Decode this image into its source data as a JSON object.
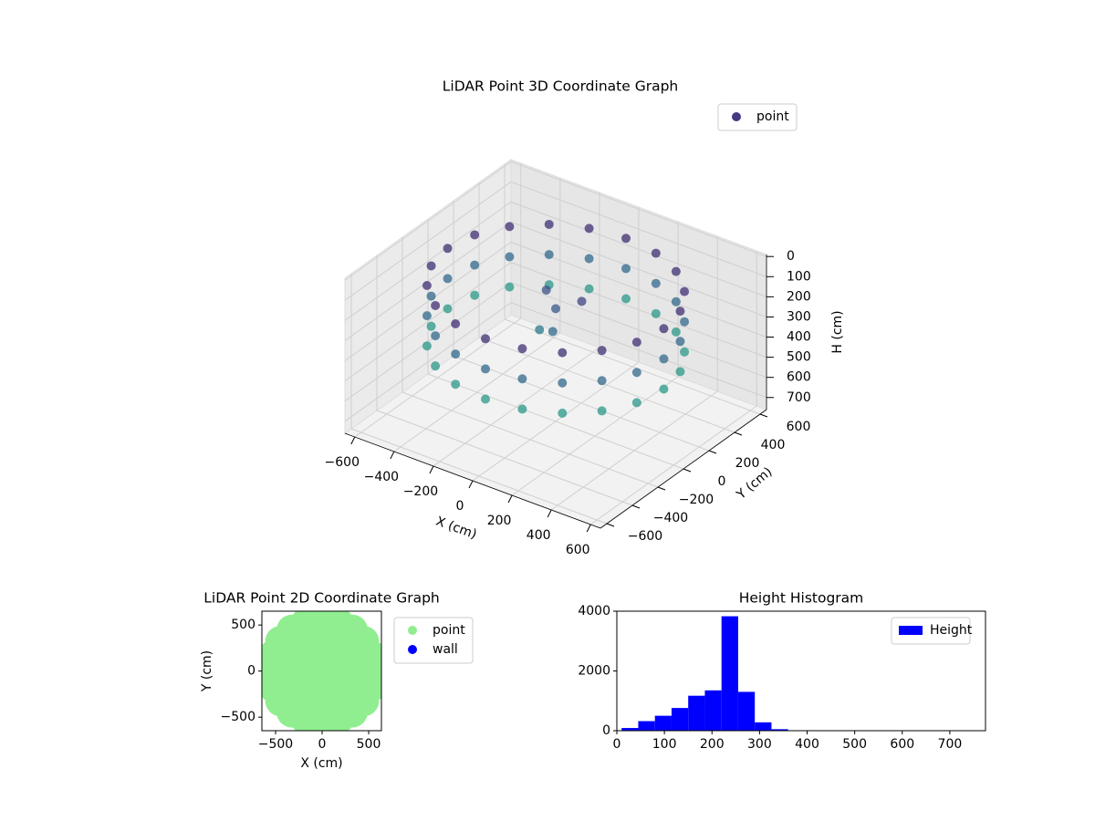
{
  "chart_data": [
    {
      "type": "scatter3d",
      "title": "LiDAR Point 3D Coordinate Graph",
      "xlabel": "X (cm)",
      "ylabel": "Y (cm)",
      "zlabel": "H (cm)",
      "xlim": [
        -650,
        650
      ],
      "ylim": [
        -650,
        650
      ],
      "zlim": [
        -10,
        760
      ],
      "z_inverted": true,
      "xticks": [
        {
          "value": -600,
          "label": "−600"
        },
        {
          "value": -400,
          "label": "−400"
        },
        {
          "value": -200,
          "label": "−200"
        },
        0,
        200,
        400,
        600
      ],
      "yticks": [
        {
          "value": -600,
          "label": "−600"
        },
        {
          "value": -400,
          "label": "−400"
        },
        {
          "value": -200,
          "label": "−200"
        },
        0,
        200,
        400,
        600
      ],
      "zticks": [
        0,
        100,
        200,
        300,
        400,
        500,
        600,
        700
      ],
      "colormap": "viridis",
      "legend": "upper right",
      "grid": true,
      "series": [
        {
          "name": "point",
          "color": "#443983",
          "x": [
            550,
            523,
            445,
            323,
            170,
            0,
            -170,
            -323,
            -445,
            -523,
            -550,
            -523,
            -445,
            -323,
            -170,
            0,
            170,
            323,
            445,
            523,
            550,
            523,
            445,
            323,
            170,
            0,
            -170,
            -323,
            -445,
            -523,
            -550,
            -523,
            -445,
            -323,
            -170,
            0,
            170,
            323,
            445,
            523,
            550,
            523,
            445,
            323,
            170,
            0,
            -170,
            -323,
            -445,
            -523,
            -550,
            -523,
            -445,
            -323,
            -170,
            0,
            170,
            323,
            445,
            523,
            0,
            100,
            -100,
            50,
            -50
          ],
          "y": [
            0,
            170,
            323,
            445,
            523,
            550,
            523,
            445,
            323,
            170,
            0,
            -170,
            -323,
            -445,
            -523,
            -550,
            -523,
            -445,
            -323,
            -170,
            0,
            170,
            323,
            445,
            523,
            550,
            523,
            445,
            323,
            170,
            0,
            -170,
            -323,
            -445,
            -523,
            -550,
            -523,
            -445,
            -323,
            -170,
            0,
            170,
            323,
            445,
            523,
            550,
            523,
            445,
            323,
            170,
            0,
            -170,
            -323,
            -445,
            -523,
            -550,
            -523,
            -445,
            -323,
            -170,
            0,
            50,
            80,
            -100,
            -50
          ],
          "z": [
            100,
            100,
            100,
            100,
            100,
            100,
            100,
            100,
            100,
            100,
            100,
            100,
            100,
            100,
            100,
            100,
            100,
            100,
            100,
            100,
            250,
            250,
            250,
            250,
            250,
            250,
            250,
            250,
            250,
            250,
            250,
            250,
            250,
            250,
            250,
            250,
            250,
            250,
            250,
            250,
            400,
            400,
            400,
            400,
            400,
            400,
            400,
            400,
            400,
            400,
            400,
            400,
            400,
            400,
            400,
            400,
            400,
            400,
            400,
            400,
            200,
            150,
            180,
            250,
            300
          ]
        }
      ]
    },
    {
      "type": "scatter",
      "title": "LiDAR Point 2D Coordinate Graph",
      "xlabel": "X (cm)",
      "ylabel": "Y (cm)",
      "xlim": [
        -647,
        637
      ],
      "ylim": [
        -647,
        650
      ],
      "xticks": [
        {
          "value": -500,
          "label": "−500"
        },
        0,
        500
      ],
      "yticks": [
        {
          "value": -500,
          "label": "−500"
        },
        0,
        500
      ],
      "legend": "outside upper right",
      "series": [
        {
          "name": "point",
          "color": "#90ee90",
          "x": [
            550,
            523,
            445,
            323,
            170,
            0,
            -170,
            -323,
            -445,
            -523,
            -550,
            -523,
            -445,
            -323,
            -170,
            0,
            170,
            323,
            445,
            523,
            300,
            243,
            93,
            -93,
            -243,
            -300,
            -243,
            -93,
            93,
            243,
            0
          ],
          "y": [
            0,
            170,
            323,
            445,
            523,
            550,
            523,
            445,
            323,
            170,
            0,
            -170,
            -323,
            -445,
            -523,
            -550,
            -523,
            -445,
            -323,
            -170,
            0,
            176,
            285,
            285,
            176,
            0,
            -176,
            -285,
            -285,
            -176,
            0
          ]
        },
        {
          "name": "wall",
          "color": "#0000ff",
          "x": [],
          "y": []
        }
      ]
    },
    {
      "type": "histogram",
      "title": "Height Histogram",
      "xlim": [
        0,
        775
      ],
      "ylim": [
        0,
        4000
      ],
      "xticks": [
        0,
        100,
        200,
        300,
        400,
        500,
        600,
        700
      ],
      "yticks": [
        0,
        2000,
        4000
      ],
      "legend": "upper right",
      "series": [
        {
          "name": "Height",
          "color": "#0000ff",
          "bins": [
            10,
            45,
            80,
            115,
            150,
            185,
            220,
            255,
            290,
            325,
            360,
            395,
            430,
            465,
            500,
            535,
            570,
            605,
            640,
            675,
            710
          ],
          "values": [
            90,
            320,
            500,
            760,
            1170,
            1350,
            3830,
            1300,
            280,
            50,
            10,
            5,
            3,
            2,
            2,
            1,
            1,
            1,
            1,
            1
          ]
        }
      ]
    }
  ]
}
